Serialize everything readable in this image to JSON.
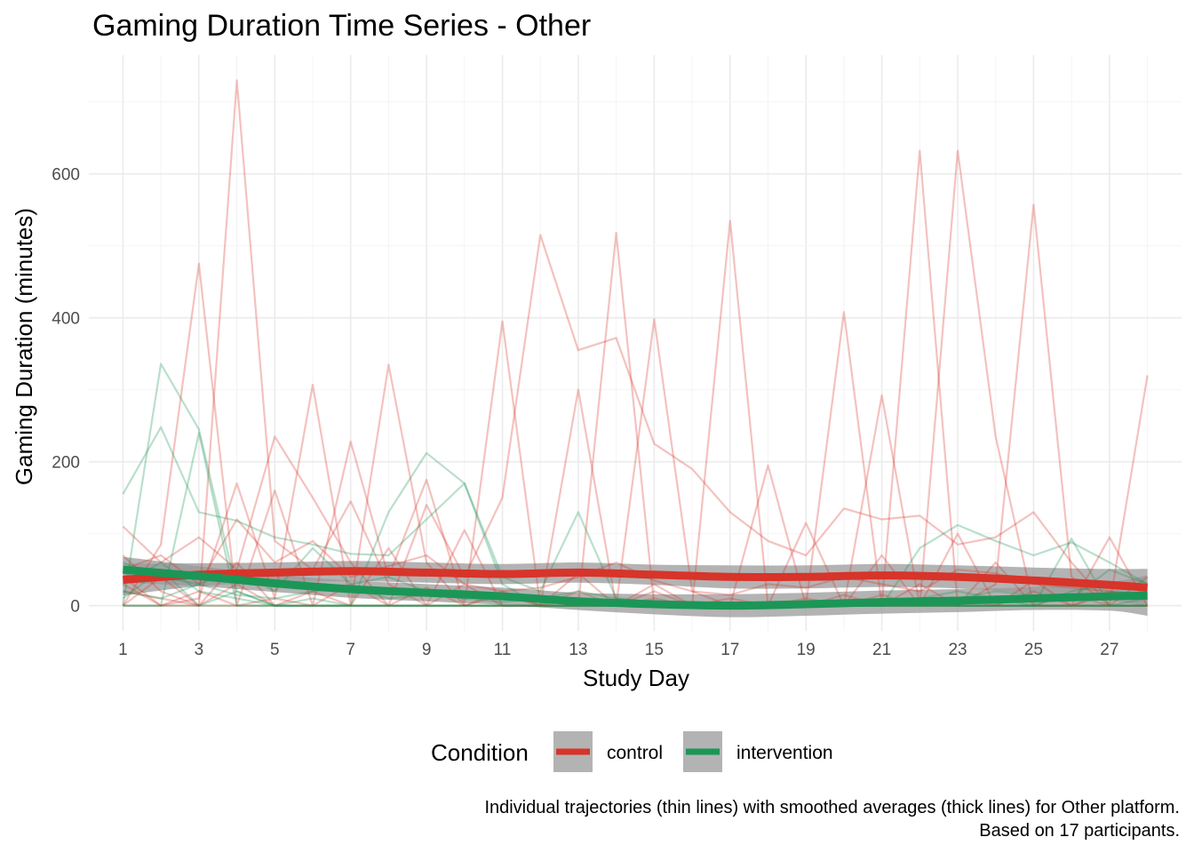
{
  "chart_data": {
    "type": "line",
    "title": "Gaming Duration Time Series - Other",
    "xlabel": "Study Day",
    "ylabel": "Gaming Duration (minutes)",
    "xlim": [
      0.1,
      28.9
    ],
    "ylim": [
      -35,
      765
    ],
    "x_ticks": [
      1,
      3,
      5,
      7,
      9,
      11,
      13,
      15,
      17,
      19,
      21,
      23,
      25,
      27
    ],
    "y_ticks": [
      0,
      200,
      400,
      600
    ],
    "grid": true,
    "legend": {
      "title": "Condition",
      "position": "bottom",
      "entries": [
        {
          "label": "control",
          "color": "#d7342a"
        },
        {
          "label": "intervention",
          "color": "#1b9656"
        }
      ]
    },
    "caption_lines": [
      "Individual trajectories (thin lines) with smoothed averages (thick lines) for Other platform.",
      "Based on 17 participants."
    ],
    "smoothed": [
      {
        "name": "control",
        "color": "#d7342a",
        "x": [
          1,
          3,
          5,
          7,
          9,
          11,
          13,
          15,
          17,
          19,
          21,
          23,
          25,
          27,
          28
        ],
        "y": [
          36,
          43,
          46,
          48,
          46,
          44,
          46,
          43,
          40,
          40,
          42,
          40,
          35,
          29,
          25
        ],
        "band": [
          22,
          16,
          14,
          14,
          14,
          14,
          14,
          14,
          16,
          16,
          16,
          16,
          18,
          22,
          26
        ]
      },
      {
        "name": "intervention",
        "color": "#1b9656",
        "x": [
          1,
          3,
          5,
          7,
          9,
          11,
          13,
          15,
          17,
          19,
          21,
          23,
          25,
          27,
          28
        ],
        "y": [
          50,
          41,
          31,
          23,
          18,
          13,
          6,
          2,
          0,
          2,
          5,
          7,
          10,
          13,
          14
        ],
        "band": [
          18,
          14,
          12,
          12,
          12,
          12,
          12,
          14,
          16,
          16,
          16,
          16,
          16,
          20,
          28
        ]
      }
    ],
    "trajectories": [
      {
        "group": "control",
        "x": [
          1,
          2,
          3,
          4,
          5,
          6,
          7,
          8,
          9,
          10,
          11,
          12,
          13,
          14,
          15,
          16,
          17,
          18,
          19,
          20,
          21,
          22,
          23,
          24,
          25,
          26,
          27,
          28
        ],
        "y": [
          110,
          60,
          95,
          50,
          235,
          150,
          60,
          0,
          140,
          40,
          150,
          515,
          355,
          372,
          225,
          190,
          130,
          90,
          70,
          135,
          120,
          125,
          85,
          95,
          130,
          60,
          0,
          40
        ]
      },
      {
        "group": "control",
        "x": [
          1,
          2,
          3,
          4,
          5,
          6,
          7,
          8,
          9,
          10,
          11,
          12,
          13,
          14,
          15,
          16,
          17,
          18,
          19,
          20,
          21,
          22,
          23,
          24,
          25,
          26,
          27,
          28
        ],
        "y": [
          0,
          85,
          475,
          0,
          160,
          0,
          228,
          40,
          175,
          0,
          395,
          0,
          0,
          518,
          0,
          0,
          535,
          0,
          0,
          0,
          292,
          0,
          632,
          235,
          0,
          0,
          95,
          0
        ]
      },
      {
        "group": "control",
        "x": [
          1,
          2,
          3,
          4,
          5,
          6,
          7,
          8,
          9,
          10,
          11,
          12,
          13,
          14,
          15,
          16,
          17,
          18,
          19,
          20,
          21,
          22,
          23,
          24,
          25,
          26,
          27,
          28
        ],
        "y": [
          70,
          20,
          0,
          730,
          90,
          50,
          145,
          30,
          0,
          105,
          0,
          0,
          300,
          0,
          398,
          20,
          0,
          195,
          0,
          408,
          0,
          632,
          0,
          30,
          557,
          40,
          0,
          320
        ]
      },
      {
        "group": "control",
        "x": [
          1,
          2,
          3,
          4,
          5,
          6,
          7,
          8,
          9,
          10,
          11,
          12,
          13,
          14,
          15,
          16,
          17,
          18,
          19,
          20,
          21,
          22,
          23,
          24,
          25,
          26,
          27,
          28
        ],
        "y": [
          30,
          0,
          10,
          170,
          10,
          307,
          0,
          335,
          60,
          0,
          20,
          0,
          45,
          0,
          30,
          0,
          10,
          0,
          115,
          0,
          70,
          0,
          100,
          0,
          35,
          0,
          20,
          10
        ]
      },
      {
        "group": "control",
        "x": [
          1,
          2,
          3,
          4,
          5,
          6,
          7,
          8,
          9,
          10,
          11,
          12,
          13,
          14,
          15,
          16,
          17,
          18,
          19,
          20,
          21,
          22,
          23,
          24,
          25,
          26,
          27,
          28
        ],
        "y": [
          0,
          0,
          0,
          0,
          0,
          0,
          0,
          0,
          0,
          0,
          0,
          0,
          0,
          0,
          0,
          0,
          0,
          0,
          0,
          0,
          0,
          0,
          0,
          0,
          0,
          0,
          0,
          0
        ]
      },
      {
        "group": "control",
        "x": [
          1,
          2,
          3,
          4,
          5,
          6,
          7,
          8,
          9,
          10,
          11,
          12,
          13,
          14,
          15,
          16,
          17,
          18,
          19,
          20,
          21,
          22,
          23,
          24,
          25,
          26,
          27,
          28
        ],
        "y": [
          50,
          70,
          30,
          120,
          60,
          90,
          40,
          55,
          70,
          30,
          20,
          25,
          40,
          60,
          35,
          20,
          15,
          30,
          25,
          40,
          30,
          20,
          50,
          45,
          30,
          25,
          20,
          15
        ]
      },
      {
        "group": "control",
        "x": [
          1,
          2,
          3,
          4,
          5,
          6,
          7,
          8,
          9,
          10,
          11,
          12,
          13,
          14,
          15,
          16,
          17,
          18,
          19,
          20,
          21,
          22,
          23,
          24,
          25,
          26,
          27,
          28
        ],
        "y": [
          0,
          40,
          0,
          60,
          0,
          20,
          0,
          80,
          0,
          30,
          0,
          0,
          20,
          0,
          10,
          0,
          0,
          0,
          0,
          15,
          0,
          30,
          0,
          60,
          0,
          15,
          0,
          0
        ]
      },
      {
        "group": "control",
        "x": [
          1,
          2,
          3,
          4,
          5,
          6,
          7,
          8,
          9,
          10,
          11,
          12,
          13,
          14,
          15,
          16,
          17,
          18,
          19,
          20,
          21,
          22,
          23,
          24,
          25,
          26,
          27,
          28
        ],
        "y": [
          20,
          10,
          0,
          30,
          0,
          0,
          0,
          0,
          0,
          0,
          0,
          0,
          0,
          0,
          0,
          0,
          0,
          0,
          0,
          0,
          0,
          0,
          0,
          0,
          0,
          0,
          0,
          0
        ]
      },
      {
        "group": "control",
        "x": [
          1,
          2,
          3,
          4,
          5,
          6,
          7,
          8,
          9,
          10,
          11,
          12,
          13,
          14,
          15,
          16,
          17,
          18,
          19,
          20,
          21,
          22,
          23,
          24,
          25,
          26,
          27,
          28
        ],
        "y": [
          40,
          0,
          20,
          0,
          10,
          0,
          30,
          0,
          25,
          0,
          15,
          0,
          10,
          0,
          20,
          0,
          5,
          0,
          10,
          0,
          15,
          0,
          10,
          0,
          20,
          0,
          15,
          10
        ]
      },
      {
        "group": "intervention",
        "x": [
          1,
          2,
          3,
          4,
          5,
          6,
          7,
          8,
          9,
          10,
          11,
          12,
          13,
          14,
          15,
          16,
          17,
          18,
          19,
          20,
          21,
          22,
          23,
          24,
          25,
          26,
          27,
          28
        ],
        "y": [
          155,
          248,
          130,
          118,
          95,
          85,
          72,
          70,
          120,
          170,
          40,
          20,
          130,
          10,
          5,
          0,
          0,
          0,
          0,
          0,
          0,
          80,
          112,
          90,
          70,
          88,
          60,
          30
        ]
      },
      {
        "group": "intervention",
        "x": [
          1,
          2,
          3,
          4,
          5,
          6,
          7,
          8,
          9,
          10,
          11,
          12,
          13,
          14,
          15,
          16,
          17,
          18,
          19,
          20,
          21,
          22,
          23,
          24,
          25,
          26,
          27,
          28
        ],
        "y": [
          0,
          336,
          245,
          20,
          0,
          0,
          0,
          130,
          212,
          170,
          30,
          0,
          0,
          0,
          0,
          0,
          0,
          0,
          0,
          0,
          0,
          0,
          0,
          0,
          0,
          93,
          0,
          10
        ]
      },
      {
        "group": "intervention",
        "x": [
          1,
          2,
          3,
          4,
          5,
          6,
          7,
          8,
          9,
          10,
          11,
          12,
          13,
          14,
          15,
          16,
          17,
          18,
          19,
          20,
          21,
          22,
          23,
          24,
          25,
          26,
          27,
          28
        ],
        "y": [
          60,
          40,
          30,
          50,
          20,
          80,
          30,
          40,
          20,
          10,
          15,
          10,
          20,
          10,
          5,
          0,
          0,
          0,
          0,
          0,
          0,
          10,
          20,
          10,
          0,
          20,
          30,
          20
        ]
      },
      {
        "group": "intervention",
        "x": [
          1,
          2,
          3,
          4,
          5,
          6,
          7,
          8,
          9,
          10,
          11,
          12,
          13,
          14,
          15,
          16,
          17,
          18,
          19,
          20,
          21,
          22,
          23,
          24,
          25,
          26,
          27,
          28
        ],
        "y": [
          0,
          0,
          240,
          0,
          0,
          0,
          0,
          0,
          0,
          0,
          0,
          0,
          0,
          0,
          0,
          0,
          0,
          0,
          0,
          0,
          0,
          0,
          0,
          0,
          0,
          0,
          0,
          0
        ]
      },
      {
        "group": "intervention",
        "x": [
          1,
          2,
          3,
          4,
          5,
          6,
          7,
          8,
          9,
          10,
          11,
          12,
          13,
          14,
          15,
          16,
          17,
          18,
          19,
          20,
          21,
          22,
          23,
          24,
          25,
          26,
          27,
          28
        ],
        "y": [
          30,
          60,
          20,
          10,
          0,
          10,
          0,
          0,
          0,
          0,
          0,
          0,
          0,
          0,
          0,
          0,
          0,
          0,
          0,
          0,
          0,
          0,
          0,
          0,
          0,
          0,
          0,
          0
        ]
      },
      {
        "group": "intervention",
        "x": [
          1,
          2,
          3,
          4,
          5,
          6,
          7,
          8,
          9,
          10,
          11,
          12,
          13,
          14,
          15,
          16,
          17,
          18,
          19,
          20,
          21,
          22,
          23,
          24,
          25,
          26,
          27,
          28
        ],
        "y": [
          0,
          0,
          0,
          0,
          0,
          0,
          0,
          0,
          0,
          0,
          0,
          0,
          0,
          0,
          0,
          0,
          0,
          0,
          0,
          0,
          0,
          0,
          0,
          0,
          0,
          0,
          0,
          0
        ]
      },
      {
        "group": "intervention",
        "x": [
          1,
          2,
          3,
          4,
          5,
          6,
          7,
          8,
          9,
          10,
          11,
          12,
          13,
          14,
          15,
          16,
          17,
          18,
          19,
          20,
          21,
          22,
          23,
          24,
          25,
          26,
          27,
          28
        ],
        "y": [
          20,
          10,
          30,
          15,
          10,
          20,
          25,
          10,
          15,
          10,
          5,
          10,
          5,
          0,
          5,
          0,
          0,
          0,
          0,
          0,
          0,
          5,
          10,
          20,
          15,
          10,
          50,
          30
        ]
      },
      {
        "group": "intervention",
        "x": [
          1,
          2,
          3,
          4,
          5,
          6,
          7,
          8,
          9,
          10,
          11,
          12,
          13,
          14,
          15,
          16,
          17,
          18,
          19,
          20,
          21,
          22,
          23,
          24,
          25,
          26,
          27,
          28
        ],
        "y": [
          10,
          50,
          0,
          20,
          0,
          0,
          0,
          0,
          0,
          0,
          0,
          0,
          0,
          0,
          0,
          0,
          0,
          0,
          0,
          0,
          0,
          0,
          0,
          0,
          0,
          0,
          0,
          0
        ]
      }
    ]
  }
}
